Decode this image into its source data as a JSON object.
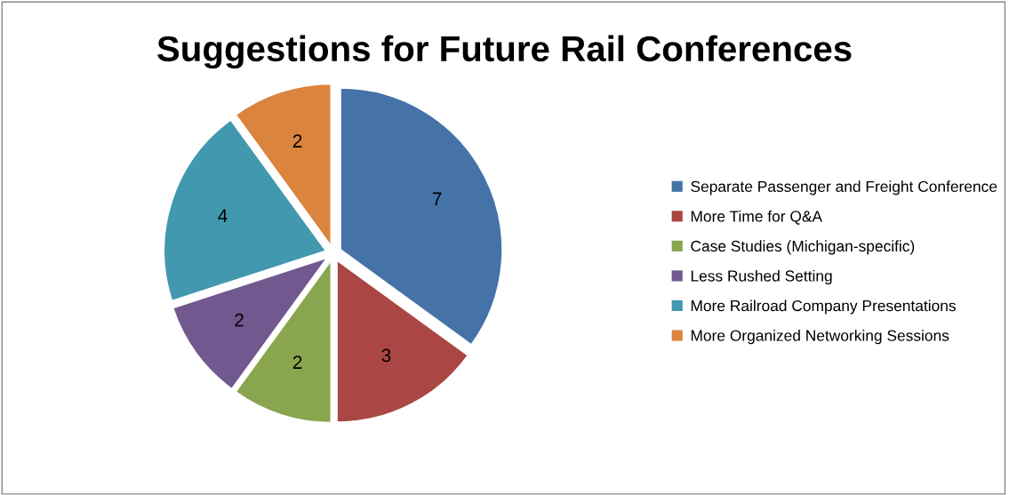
{
  "chart_data": {
    "type": "pie",
    "title": "Suggestions for Future Rail Conferences",
    "categories": [
      "Separate Passenger and Freight Conference",
      "More Time for Q&A",
      "Case Studies (Michigan-specific)",
      "Less Rushed Setting",
      "More Railroad Company Presentations",
      "More Organized Networking Sessions"
    ],
    "values": [
      7,
      3,
      2,
      2,
      4,
      2
    ],
    "colors": [
      "#4572a7",
      "#aa4643",
      "#89a54e",
      "#71588f",
      "#4198af",
      "#db843d"
    ],
    "data_labels": true,
    "legend": "right"
  }
}
